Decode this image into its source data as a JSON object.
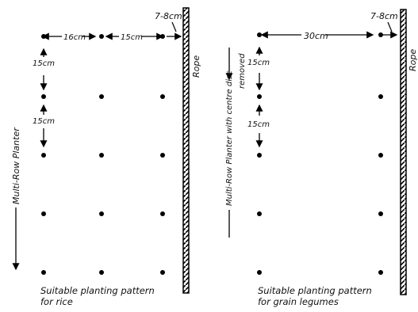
{
  "left_panel": {
    "spacing_top_left": "16cm",
    "spacing_top_right": "15cm",
    "rope_offset": "7-8cm",
    "spacing_row_1": "15cm",
    "spacing_row_2": "15cm",
    "rope_label": "Rope",
    "planter_label": "Multi-Row Planter",
    "caption_line1": "Suitable planting pattern",
    "caption_line2": "for rice",
    "dot_columns": 3,
    "dot_rows": 5
  },
  "right_panel": {
    "spacing_top": "30cm",
    "rope_offset": "7-8cm",
    "spacing_row_1": "15cm",
    "spacing_row_2": "15cm",
    "rope_label": "Rope",
    "planter_label_line1": "Multi-Row Planter with centre disc",
    "planter_label_line2": "removed",
    "caption_line1": "Suitable planting pattern",
    "caption_line2": "for grain legumes",
    "dot_columns": 2,
    "dot_rows": 5
  }
}
